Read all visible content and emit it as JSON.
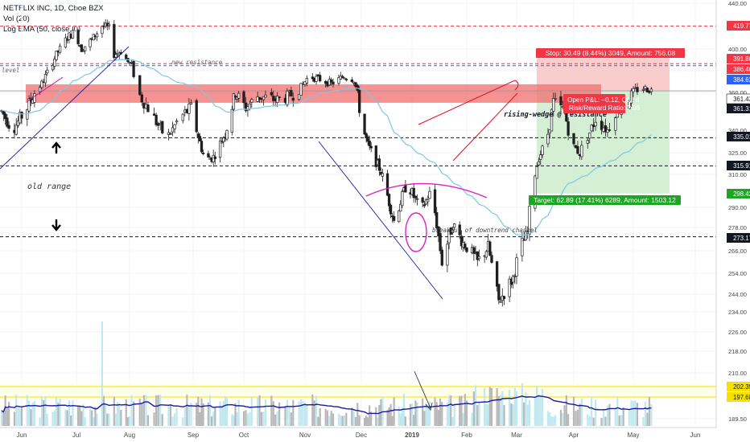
{
  "legend": {
    "symbol": "NETFLIX INC, 1D, Cboe BZX",
    "volume": "Vol (20)",
    "ema": "Log EMA (50, close, 0)"
  },
  "colors": {
    "up": "#26a69a",
    "down": "#ef5350",
    "candle_body": "#1f1f1f",
    "ema": "#7ec8e3",
    "vol_ma": "#1a1aa0",
    "stop_zone": "#f9c4c4",
    "target_zone": "#cdeccd",
    "resistance_band": "#f26d6d",
    "red_label": "#f23645",
    "blue_label": "#2962ff",
    "green_label": "#1ea524",
    "black_label": "#131722"
  },
  "chart_data": {
    "type": "candlestick",
    "title": "NETFLIX INC, 1D, Cboe BZX",
    "ylim": [
      186,
      440
    ],
    "y_ticks": [
      189.5,
      198.0,
      210.0,
      218.0,
      226.0,
      234.0,
      244.0,
      254.0,
      266.0,
      278.0,
      290.0,
      310.0,
      325.0,
      340.0,
      360.0,
      380.0,
      400.0,
      420.0,
      440.0
    ],
    "x_ticks": [
      "Jun",
      "Jul",
      "Aug",
      "Sep",
      "Oct",
      "Nov",
      "Dec",
      "2019",
      "Feb",
      "Mar",
      "Apr",
      "May",
      "Jun"
    ],
    "price_labels": [
      {
        "value": "419.77",
        "kind": "red"
      },
      {
        "value": "391.80",
        "kind": "red"
      },
      {
        "value": "386.46",
        "kind": "red"
      },
      {
        "value": "384.62",
        "kind": "blue"
      },
      {
        "value": "361.43",
        "kind": "white"
      },
      {
        "value": "361.31",
        "kind": "black"
      },
      {
        "value": "335.01",
        "kind": "black"
      },
      {
        "value": "315.91",
        "kind": "black"
      },
      {
        "value": "298.42",
        "kind": "green"
      },
      {
        "value": "273.17",
        "kind": "black"
      },
      {
        "value": "202.35",
        "kind": "yellow"
      },
      {
        "value": "197.68",
        "kind": "yellow"
      }
    ],
    "horizontal_levels": [
      {
        "value": 419.77,
        "style": "red-dashed"
      },
      {
        "value": 386.46,
        "style": "red-dashed"
      },
      {
        "value": 384.62,
        "style": "blue-dashed"
      },
      {
        "value": 335.01,
        "style": "black-dashed"
      },
      {
        "value": 315.91,
        "style": "black-dashed"
      },
      {
        "value": 273.17,
        "style": "black-dashed"
      }
    ],
    "resistance_zone": [
      354.5,
      367.5
    ],
    "position": {
      "stop_text": "Stop: 30.49 (8.44%) 3049, Amount: 756.08",
      "pnl_text": "Open P&L: −0.12, Qty: 8",
      "rr_text": "Risk/Reward Ratio: 2.06",
      "target_text": "Target: 62.89 (17.41%) 6289, Amount: 1503.12",
      "entry": 361.31,
      "stop": 391.8,
      "target": 298.42
    },
    "annotations": {
      "level": "level",
      "new_resistance": "new resistance",
      "old_range": "old range",
      "rising_wedge": "rising-wedge @ resistance",
      "breakout": "breakout of downtrend channel"
    },
    "volume_levels": [
      202.35,
      197.68
    ]
  }
}
